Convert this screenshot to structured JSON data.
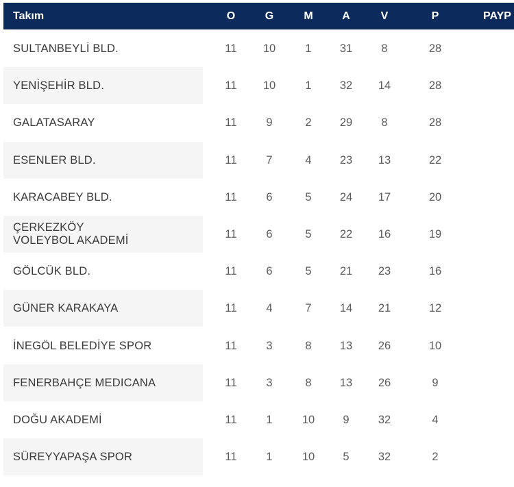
{
  "header": {
    "team": "Takım",
    "o": "O",
    "g": "G",
    "m": "M",
    "a": "A",
    "v": "V",
    "p": "P",
    "payp": "PAYP"
  },
  "colors": {
    "header_bg": "#0d2a5c",
    "row_alt_bg": "#f5f5f5"
  },
  "rows": [
    {
      "team": "SULTANBEYLİ BLD.",
      "o": "11",
      "g": "10",
      "m": "1",
      "a": "31",
      "v": "8",
      "p": "28"
    },
    {
      "team": "YENİŞEHİR BLD.",
      "o": "11",
      "g": "10",
      "m": "1",
      "a": "32",
      "v": "14",
      "p": "28"
    },
    {
      "team": "GALATASARAY",
      "o": "11",
      "g": "9",
      "m": "2",
      "a": "29",
      "v": "8",
      "p": "28"
    },
    {
      "team": "ESENLER BLD.",
      "o": "11",
      "g": "7",
      "m": "4",
      "a": "23",
      "v": "13",
      "p": "22"
    },
    {
      "team": "KARACABEY BLD.",
      "o": "11",
      "g": "6",
      "m": "5",
      "a": "24",
      "v": "17",
      "p": "20"
    },
    {
      "team": "ÇERKEZKÖY\nVOLEYBOL AKADEMİ",
      "o": "11",
      "g": "6",
      "m": "5",
      "a": "22",
      "v": "16",
      "p": "19"
    },
    {
      "team": "GÖLCÜK BLD.",
      "o": "11",
      "g": "6",
      "m": "5",
      "a": "21",
      "v": "23",
      "p": "16"
    },
    {
      "team": "GÜNER KARAKAYA",
      "o": "11",
      "g": "4",
      "m": "7",
      "a": "14",
      "v": "21",
      "p": "12"
    },
    {
      "team": "İNEGÖL BELEDİYE SPOR",
      "o": "11",
      "g": "3",
      "m": "8",
      "a": "13",
      "v": "26",
      "p": "10"
    },
    {
      "team": "FENERBAHÇE MEDICANA",
      "o": "11",
      "g": "3",
      "m": "8",
      "a": "13",
      "v": "26",
      "p": "9"
    },
    {
      "team": "DOĞU AKADEMİ",
      "o": "11",
      "g": "1",
      "m": "10",
      "a": "9",
      "v": "32",
      "p": "4"
    },
    {
      "team": "SÜREYYAPAŞA SPOR",
      "o": "11",
      "g": "1",
      "m": "10",
      "a": "5",
      "v": "32",
      "p": "2"
    }
  ]
}
